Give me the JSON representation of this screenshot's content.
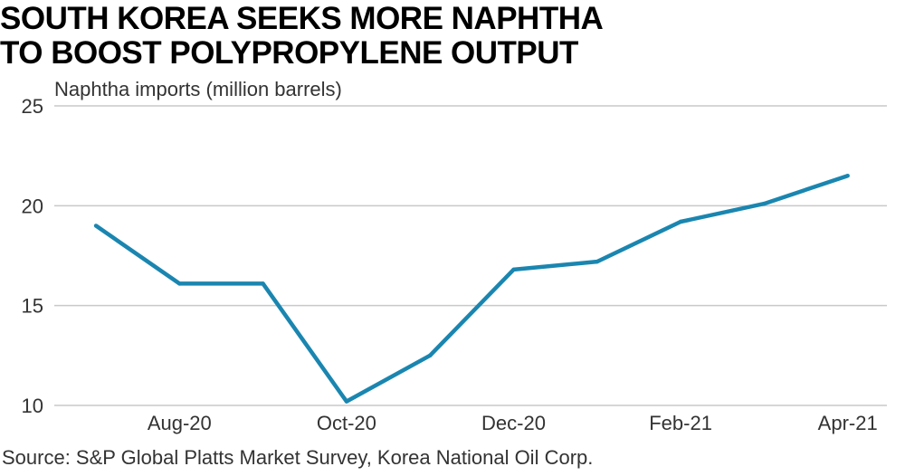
{
  "title_lines": [
    "SOUTH KOREA SEEKS MORE NAPHTHA",
    "TO BOOST POLYPROPYLENE OUTPUT"
  ],
  "source": "Source: S&P Global Platts Market Survey, Korea National Oil Corp.",
  "colors": {
    "line": "#1a86b0",
    "grid": "#c9c9c9",
    "text": "#333333"
  },
  "chart_data": {
    "type": "line",
    "title": "SOUTH KOREA SEEKS MORE NAPHTHA TO BOOST POLYPROPYLENE OUTPUT",
    "ylabel": "Naphtha imports (million barrels)",
    "xlabel": "",
    "categories": [
      "Jul-20",
      "Aug-20",
      "Sep-20",
      "Oct-20",
      "Nov-20",
      "Dec-20",
      "Jan-21",
      "Feb-21",
      "Mar-21",
      "Apr-21"
    ],
    "x_tick_labels": [
      "Aug-20",
      "Oct-20",
      "Dec-20",
      "Feb-21",
      "Apr-21"
    ],
    "y_ticks": [
      10,
      15,
      20,
      25
    ],
    "ylim": [
      10,
      25
    ],
    "grid": true,
    "series": [
      {
        "values": [
          19.0,
          16.1,
          16.1,
          10.2,
          12.5,
          16.8,
          17.2,
          19.2,
          20.1,
          21.5
        ]
      }
    ]
  }
}
